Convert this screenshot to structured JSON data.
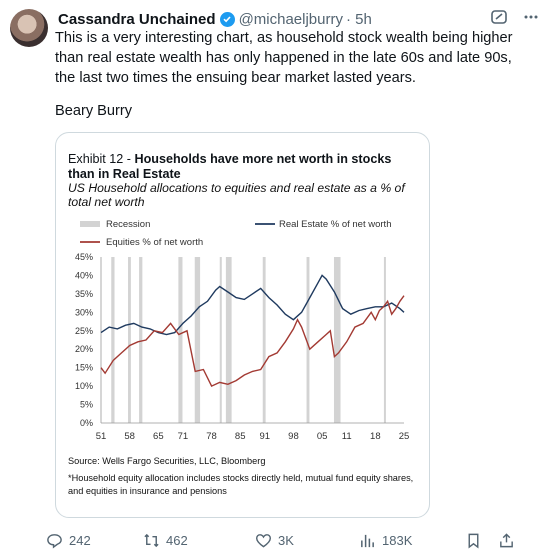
{
  "author": {
    "name": "Cassandra Unchained",
    "handle": "@michaeljburry",
    "time": "· 5h"
  },
  "tweet": {
    "text": "This is a very interesting chart, as household stock wealth being higher than real estate wealth has only happened in the late 60s and late 90s, the last two times the ensuing bear market lasted years.",
    "signature": "Beary Burry"
  },
  "exhibit": {
    "label": "Exhibit 12 - ",
    "title": "Households have more net worth in stocks than in Real Estate",
    "subtitle": "US Household allocations to equities and real estate as a % of total net worth",
    "source": "Source: Wells Fargo Securities, LLC, Bloomberg",
    "footnote": "*Household equity allocation includes stocks directly held, mutual fund equity shares, and equities in insurance and pensions"
  },
  "chart_data": {
    "type": "line",
    "legend": [
      "Recession",
      "Real Estate % of net worth",
      "Equities % of net worth"
    ],
    "xticks": [
      "51",
      "58",
      "65",
      "71",
      "78",
      "85",
      "91",
      "98",
      "05",
      "11",
      "18",
      "25"
    ],
    "yticks": [
      "45%",
      "40%",
      "35%",
      "30%",
      "25%",
      "20%",
      "15%",
      "10%",
      "5%",
      "0%"
    ],
    "ylim": [
      0,
      45
    ],
    "xlim": [
      1951,
      2025
    ],
    "recessions": [
      [
        1953.5,
        1954.3
      ],
      [
        1957.6,
        1958.3
      ],
      [
        1960.3,
        1961.1
      ],
      [
        1969.9,
        1970.9
      ],
      [
        1973.9,
        1975.2
      ],
      [
        1980.0,
        1980.5
      ],
      [
        1981.5,
        1982.9
      ],
      [
        1990.5,
        1991.2
      ],
      [
        2001.2,
        2001.9
      ],
      [
        2007.9,
        2009.5
      ],
      [
        2020.1,
        2020.4
      ]
    ],
    "series": [
      {
        "name": "Real Estate % of net worth",
        "color": "#1f3a5f",
        "x": [
          1951,
          1953,
          1955,
          1957,
          1959,
          1961,
          1963,
          1965,
          1967,
          1969,
          1971,
          1973,
          1975,
          1977,
          1979,
          1980,
          1982,
          1984,
          1986,
          1988,
          1990,
          1992,
          1994,
          1996,
          1998,
          2000,
          2002,
          2004,
          2005,
          2006,
          2008,
          2010,
          2012,
          2014,
          2016,
          2018,
          2020,
          2022,
          2024,
          2025
        ],
        "y": [
          24.5,
          26,
          25.5,
          26.5,
          27,
          26,
          25.5,
          24.5,
          24,
          24.5,
          27,
          29,
          31.5,
          33,
          36,
          37,
          35.5,
          34,
          33.5,
          35,
          36.5,
          34,
          32,
          29.5,
          28,
          30,
          34,
          38,
          40,
          39,
          35.5,
          31,
          29.5,
          30.5,
          31,
          31.5,
          31.5,
          32.5,
          31,
          30
        ]
      },
      {
        "name": "Equities % of net worth",
        "color": "#a33a33",
        "x": [
          1951,
          1952,
          1954,
          1956,
          1958,
          1960,
          1962,
          1964,
          1966,
          1968,
          1970,
          1972,
          1974,
          1976,
          1978,
          1980,
          1982,
          1984,
          1986,
          1988,
          1990,
          1992,
          1994,
          1996,
          1998,
          1999,
          2000,
          2002,
          2004,
          2006,
          2007,
          2008,
          2009,
          2011,
          2013,
          2015,
          2017,
          2018,
          2019,
          2020,
          2021,
          2022,
          2023,
          2024,
          2025
        ],
        "y": [
          15,
          13.5,
          17,
          19,
          21,
          22,
          22.5,
          25,
          24.5,
          27,
          24,
          25,
          14,
          14.5,
          10,
          11,
          10.5,
          11.5,
          13,
          14,
          14.5,
          18,
          19,
          22,
          25.5,
          28,
          26,
          20,
          22,
          24,
          25,
          18,
          19,
          22,
          26,
          27,
          30,
          28,
          30.5,
          31.5,
          33,
          29.5,
          31,
          33,
          34.5
        ]
      }
    ]
  },
  "actions": {
    "replies": "242",
    "reposts": "462",
    "likes": "3K",
    "views": "183K"
  }
}
